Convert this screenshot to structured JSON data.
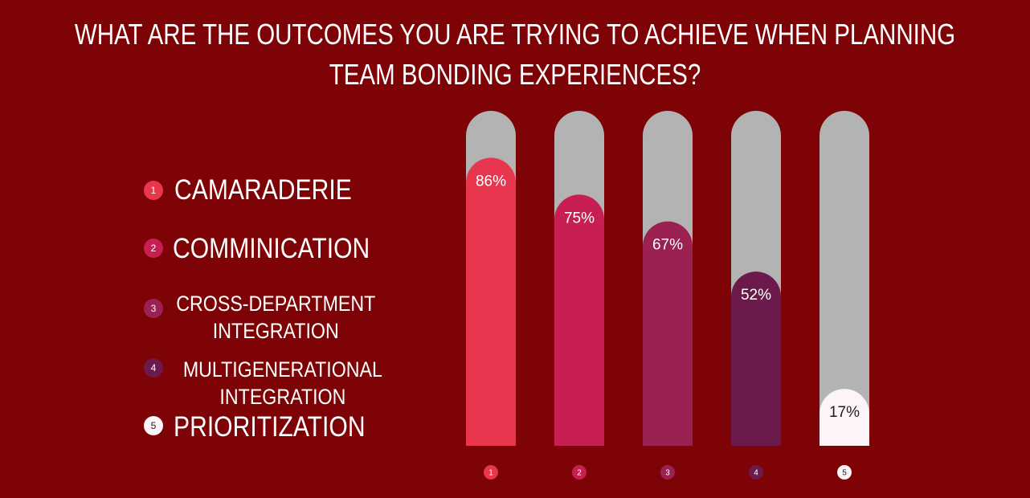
{
  "chart_data": {
    "type": "bar",
    "title": "WHAT ARE THE OUTCOMES YOU ARE TRYING TO ACHIEVE WHEN PLANNING TEAM BONDING EXPERIENCES?",
    "categories": [
      "CAMARADERIE",
      "COMMINICATION",
      "CROSS-DEPARTMENT INTEGRATION",
      "MULTIGENERATIONAL INTEGRATION",
      "PRIORITIZATION"
    ],
    "markers": [
      "1",
      "2",
      "3",
      "4",
      "5"
    ],
    "values": [
      86,
      75,
      67,
      52,
      17
    ],
    "value_labels": [
      "86%",
      "75%",
      "67%",
      "52%",
      "17%"
    ],
    "colors": [
      "#e8364e",
      "#c81f52",
      "#9a2152",
      "#6b1a4b",
      "#fcf4f6"
    ],
    "track_color": "#b3b3b3",
    "ylim": [
      0,
      100
    ]
  }
}
